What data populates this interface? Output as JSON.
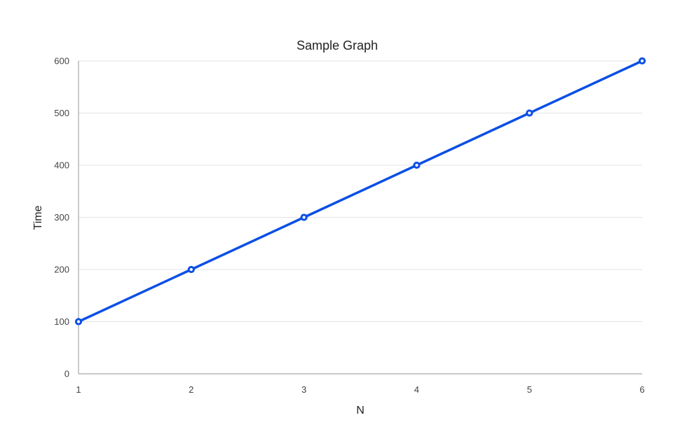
{
  "chart_data": {
    "type": "line",
    "title": "Sample Graph",
    "xlabel": "N",
    "ylabel": "Time",
    "x": [
      1,
      2,
      3,
      4,
      5,
      6
    ],
    "series": [
      {
        "values": [
          100,
          200,
          300,
          400,
          500,
          600
        ],
        "color": "#0b4fe6"
      }
    ],
    "xlim": [
      1,
      6
    ],
    "ylim": [
      0,
      600
    ],
    "x_ticks": [
      1,
      2,
      3,
      4,
      5,
      6
    ],
    "y_ticks": [
      0,
      100,
      200,
      300,
      400,
      500,
      600
    ],
    "grid": true,
    "legend": "none"
  }
}
